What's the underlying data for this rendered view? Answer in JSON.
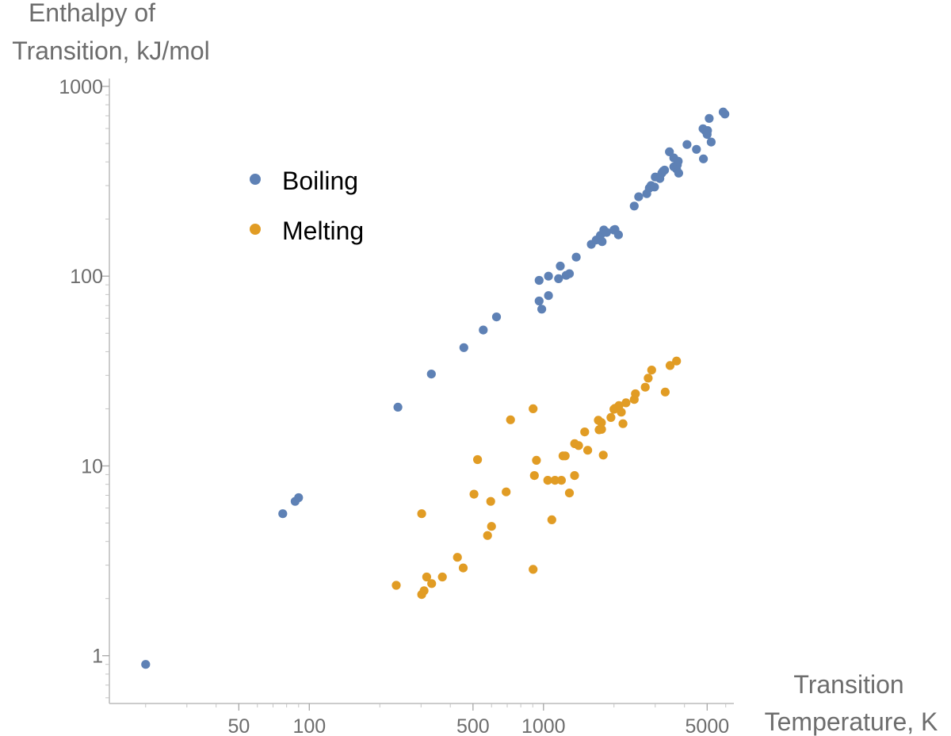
{
  "chart_data": {
    "type": "scatter",
    "title": "",
    "ylabel_lines": [
      "Enthalpy of",
      "Transition, kJ/mol"
    ],
    "xlabel_lines": [
      "Transition",
      "Temperature, K"
    ],
    "x_scale": "log",
    "y_scale": "log",
    "xlim": [
      14,
      6500
    ],
    "ylim": [
      0.56,
      1100
    ],
    "x_ticks": [
      50,
      100,
      500,
      1000,
      5000
    ],
    "x_tick_labels": [
      "50",
      "100",
      "500",
      "1000",
      "5000"
    ],
    "y_ticks": [
      1,
      10,
      100,
      1000
    ],
    "y_tick_labels": [
      "1",
      "10",
      "100",
      "1000"
    ],
    "grid": false,
    "legend_position": "top-left",
    "series": [
      {
        "name": "Boiling",
        "color": "#5e81b5",
        "points": [
          [
            20,
            0.9
          ],
          [
            77,
            5.6
          ],
          [
            87,
            6.5
          ],
          [
            90,
            6.8
          ],
          [
            239,
            20.4
          ],
          [
            332,
            30.5
          ],
          [
            457,
            42
          ],
          [
            553,
            52
          ],
          [
            630,
            61
          ],
          [
            958,
            95
          ],
          [
            958,
            74
          ],
          [
            983,
            67
          ],
          [
            1050,
            100
          ],
          [
            1050,
            79
          ],
          [
            1160,
            97
          ],
          [
            1180,
            113
          ],
          [
            1250,
            101
          ],
          [
            1290,
            103
          ],
          [
            1380,
            126
          ],
          [
            1600,
            147
          ],
          [
            1680,
            155
          ],
          [
            1750,
            164
          ],
          [
            1780,
            152
          ],
          [
            1810,
            175
          ],
          [
            1860,
            170
          ],
          [
            2000,
            175
          ],
          [
            2020,
            176
          ],
          [
            2090,
            165
          ],
          [
            2440,
            234
          ],
          [
            2550,
            262
          ],
          [
            2760,
            272
          ],
          [
            2830,
            291
          ],
          [
            2880,
            300
          ],
          [
            2980,
            295
          ],
          [
            3000,
            333
          ],
          [
            3140,
            327
          ],
          [
            3200,
            349
          ],
          [
            3240,
            357
          ],
          [
            3290,
            362
          ],
          [
            3450,
            452
          ],
          [
            3600,
            420
          ],
          [
            3600,
            377
          ],
          [
            3700,
            367
          ],
          [
            3730,
            386
          ],
          [
            3760,
            403
          ],
          [
            3780,
            349
          ],
          [
            4100,
            494
          ],
          [
            4500,
            466
          ],
          [
            4800,
            598
          ],
          [
            4900,
            585
          ],
          [
            5000,
            558
          ],
          [
            5020,
            585
          ],
          [
            5100,
            678
          ],
          [
            5200,
            509
          ],
          [
            4820,
            415
          ],
          [
            5850,
            733
          ],
          [
            5950,
            715
          ]
        ]
      },
      {
        "name": "Melting",
        "color": "#e19c24",
        "points": [
          [
            235,
            2.35
          ],
          [
            302,
            2.1
          ],
          [
            302,
            5.6
          ],
          [
            309,
            2.2
          ],
          [
            317,
            2.6
          ],
          [
            333,
            2.4
          ],
          [
            370,
            2.6
          ],
          [
            429,
            3.3
          ],
          [
            454,
            2.9
          ],
          [
            505,
            7.1
          ],
          [
            523,
            10.8
          ],
          [
            577,
            4.3
          ],
          [
            595,
            6.5
          ],
          [
            600,
            4.8
          ],
          [
            693,
            7.3
          ],
          [
            723,
            17.5
          ],
          [
            903,
            20
          ],
          [
            903,
            2.85
          ],
          [
            914,
            8.9
          ],
          [
            933,
            10.7
          ],
          [
            1043,
            8.4
          ],
          [
            1085,
            5.2
          ],
          [
            1120,
            8.4
          ],
          [
            1193,
            8.4
          ],
          [
            1211,
            11.3
          ],
          [
            1238,
            11.3
          ],
          [
            1290,
            7.2
          ],
          [
            1358,
            13.1
          ],
          [
            1357,
            8.9
          ],
          [
            1412,
            12.8
          ],
          [
            1500,
            15.1
          ],
          [
            1545,
            12.1
          ],
          [
            1715,
            17.4
          ],
          [
            1728,
            15.5
          ],
          [
            1768,
            16.9
          ],
          [
            1770,
            15.6
          ],
          [
            1800,
            11.4
          ],
          [
            1941,
            18
          ],
          [
            2000,
            19.9
          ],
          [
            2020,
            20.1
          ],
          [
            2100,
            20.8
          ],
          [
            2150,
            19.2
          ],
          [
            2185,
            16.7
          ],
          [
            2250,
            21.5
          ],
          [
            2440,
            22.4
          ],
          [
            2470,
            24
          ],
          [
            2720,
            26
          ],
          [
            2800,
            29
          ],
          [
            2896,
            32
          ],
          [
            3310,
            24.5
          ],
          [
            3470,
            33.8
          ],
          [
            3700,
            35.7
          ]
        ]
      }
    ]
  }
}
